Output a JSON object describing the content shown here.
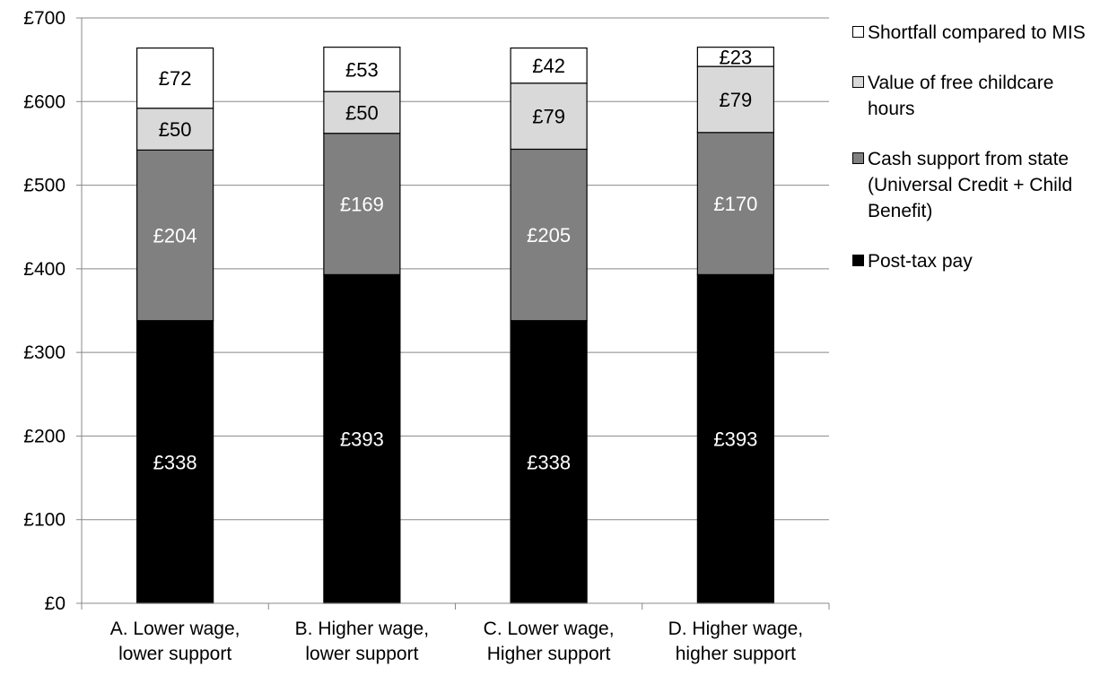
{
  "chart_data": {
    "type": "bar",
    "stacked": true,
    "categories": [
      [
        "A. Lower wage,",
        "lower support"
      ],
      [
        "B. Higher wage,",
        "lower support"
      ],
      [
        "C. Lower wage,",
        "Higher support"
      ],
      [
        "D. Higher wage,",
        "higher support"
      ]
    ],
    "series": [
      {
        "name": "Post-tax pay",
        "values": [
          338,
          393,
          338,
          393
        ],
        "labels": [
          "£338",
          "£393",
          "£338",
          "£393"
        ],
        "color": "#000000",
        "label_color": "#ffffff"
      },
      {
        "name": "Cash support from state (Universal Credit + Child Benefit)",
        "values": [
          204,
          169,
          205,
          170
        ],
        "labels": [
          "£204",
          "£169",
          "£205",
          "£170"
        ],
        "color": "#808080",
        "label_color": "#ffffff"
      },
      {
        "name": "Value of free childcare hours",
        "values": [
          50,
          50,
          79,
          79
        ],
        "labels": [
          "£50",
          "£50",
          "£79",
          "£79"
        ],
        "color": "#d9d9d9",
        "label_color": "#000000"
      },
      {
        "name": "Shortfall compared to MIS",
        "values": [
          72,
          53,
          42,
          23
        ],
        "labels": [
          "£72",
          "£53",
          "£42",
          "£23"
        ],
        "color": "#ffffff",
        "label_color": "#000000"
      }
    ],
    "ylim": [
      0,
      700
    ],
    "yticks": [
      0,
      100,
      200,
      300,
      400,
      500,
      600,
      700
    ],
    "ytick_labels": [
      "£0",
      "£100",
      "£200",
      "£300",
      "£400",
      "£500",
      "£600",
      "£700"
    ],
    "grid": true,
    "legend_position": "right",
    "legend_order": [
      3,
      2,
      1,
      0
    ],
    "title": "",
    "xlabel": "",
    "ylabel": ""
  }
}
